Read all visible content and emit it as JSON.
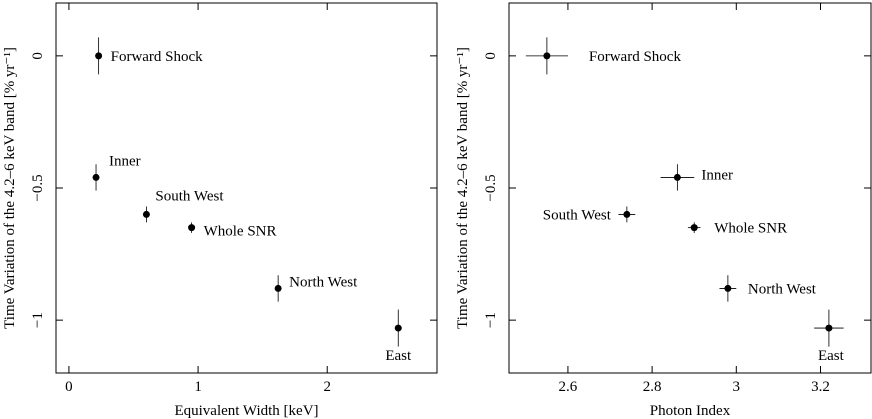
{
  "chart_data": [
    {
      "type": "scatter",
      "xlabel": "Equivalent Width [keV]",
      "ylabel": "Time Variation of the 4.2–6 keV band [% yr⁻¹]",
      "xlim": [
        -0.1,
        2.85
      ],
      "ylim": [
        -1.2,
        0.2
      ],
      "xticks": [
        0,
        1,
        2
      ],
      "xtick_labels": [
        "0",
        "1",
        "2"
      ],
      "yticks": [
        0,
        -0.5,
        -1
      ],
      "ytick_labels": [
        "0",
        "−0.5",
        "−1"
      ],
      "points": [
        {
          "label": "Forward Shock",
          "x": 0.23,
          "y": 0.0,
          "xerr": 0.0,
          "yerr": 0.07
        },
        {
          "label": "Inner",
          "x": 0.21,
          "y": -0.46,
          "xerr": 0.0,
          "yerr": 0.05
        },
        {
          "label": "South West",
          "x": 0.6,
          "y": -0.6,
          "xerr": 0.0,
          "yerr": 0.03
        },
        {
          "label": "Whole SNR",
          "x": 0.95,
          "y": -0.65,
          "xerr": 0.0,
          "yerr": 0.02
        },
        {
          "label": "North West",
          "x": 1.62,
          "y": -0.88,
          "xerr": 0.0,
          "yerr": 0.05
        },
        {
          "label": "East",
          "x": 2.55,
          "y": -1.03,
          "xerr": 0.0,
          "yerr": 0.07
        }
      ],
      "grid": false
    },
    {
      "type": "scatter",
      "xlabel": "Photon Index",
      "ylabel": "Time Variation of the 4.2–6 keV band [% yr⁻¹]",
      "xlim": [
        2.46,
        3.32
      ],
      "ylim": [
        -1.2,
        0.2
      ],
      "xticks": [
        2.6,
        2.8,
        3.0,
        3.2
      ],
      "xtick_labels": [
        "2.6",
        "2.8",
        "3",
        "3.2"
      ],
      "yticks": [
        0,
        -0.5,
        -1
      ],
      "ytick_labels": [
        "0",
        "−0.5",
        "−1"
      ],
      "points": [
        {
          "label": "Forward Shock",
          "x": 2.55,
          "y": 0.0,
          "xerr": 0.05,
          "yerr": 0.07
        },
        {
          "label": "Inner",
          "x": 2.86,
          "y": -0.46,
          "xerr": 0.04,
          "yerr": 0.05
        },
        {
          "label": "South West",
          "x": 2.74,
          "y": -0.6,
          "xerr": 0.02,
          "yerr": 0.03
        },
        {
          "label": "Whole SNR",
          "x": 2.9,
          "y": -0.65,
          "xerr": 0.015,
          "yerr": 0.02
        },
        {
          "label": "North West",
          "x": 2.98,
          "y": -0.88,
          "xerr": 0.02,
          "yerr": 0.05
        },
        {
          "label": "East",
          "x": 3.22,
          "y": -1.03,
          "xerr": 0.035,
          "yerr": 0.07
        }
      ],
      "grid": false
    }
  ]
}
